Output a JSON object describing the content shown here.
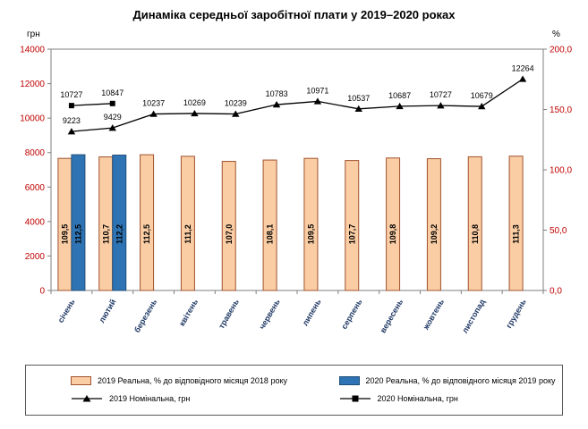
{
  "title": "Динаміка середньої заробітної плати у 2019–2020 роках",
  "axes": {
    "left_unit": "грн",
    "right_unit": "%"
  },
  "colors": {
    "axis_values": "#C00000",
    "month_labels": "#1F3864",
    "plot_border": "#7F7F7F",
    "bar_label_text": "#000000",
    "point_label_text": "#000000"
  },
  "chart_data": {
    "type": "bar",
    "subtype": "combo-bar-line-dual-axis",
    "title": "Динаміка середньої заробітної плати у 2019–2020 роках",
    "categories": [
      "січень",
      "лютий",
      "березень",
      "квітень",
      "травень",
      "червень",
      "липень",
      "серпень",
      "вересень",
      "жовтень",
      "листопад",
      "грудень"
    ],
    "left_axis": {
      "unit": "грн",
      "min": 0,
      "max": 14000,
      "tick_values": [
        0,
        2000,
        4000,
        6000,
        8000,
        10000,
        12000,
        14000
      ],
      "tick_labels": [
        "0",
        "2000",
        "4000",
        "6000",
        "8000",
        "10000",
        "12000",
        "14000"
      ]
    },
    "right_axis": {
      "unit": "%",
      "min": 0,
      "max": 200,
      "tick_values": [
        0,
        50,
        100,
        150,
        200
      ],
      "tick_labels": [
        "0,0",
        "50,0",
        "100,0",
        "150,0",
        "200,0"
      ]
    },
    "grid": "off",
    "legend_position": "bottom",
    "series": [
      {
        "name": "2019 Реальна, % до відповідного місяця 2018 року",
        "type": "bar",
        "axis": "right",
        "color": "#FACDA4",
        "border": "#A0522D",
        "values": [
          109.5,
          110.7,
          112.5,
          111.2,
          107.0,
          108.1,
          109.5,
          107.7,
          109.8,
          109.2,
          110.8,
          111.3
        ],
        "labels": [
          "109,5",
          "110,7",
          "112,5",
          "111,2",
          "107,0",
          "108,1",
          "109,5",
          "107,7",
          "109,8",
          "109,2",
          "110,8",
          "111,3"
        ]
      },
      {
        "name": "2020 Реальна, % до відповідного місяця 2019 року",
        "type": "bar",
        "axis": "right",
        "color": "#2E74B5",
        "border": "#1F4E79",
        "values": [
          112.5,
          112.2,
          null,
          null,
          null,
          null,
          null,
          null,
          null,
          null,
          null,
          null
        ],
        "labels": [
          "112,5",
          "112,2",
          null,
          null,
          null,
          null,
          null,
          null,
          null,
          null,
          null,
          null
        ]
      },
      {
        "name": "2019 Номінальна, грн",
        "type": "line",
        "marker": "triangle",
        "axis": "left",
        "color": "#000000",
        "values": [
          9223,
          9429,
          10237,
          10269,
          10239,
          10783,
          10971,
          10537,
          10687,
          10727,
          10679,
          12264
        ],
        "labels": [
          "9223",
          "9429",
          "10237",
          "10269",
          "10239",
          "10783",
          "10971",
          "10537",
          "10687",
          "10727",
          "10679",
          "12264"
        ]
      },
      {
        "name": "2020 Номінальна, грн",
        "type": "line",
        "marker": "square",
        "axis": "left",
        "color": "#000000",
        "values": [
          10727,
          10847,
          null,
          null,
          null,
          null,
          null,
          null,
          null,
          null,
          null,
          null
        ],
        "labels": [
          "10727",
          "10847",
          null,
          null,
          null,
          null,
          null,
          null,
          null,
          null,
          null,
          null
        ]
      }
    ]
  }
}
